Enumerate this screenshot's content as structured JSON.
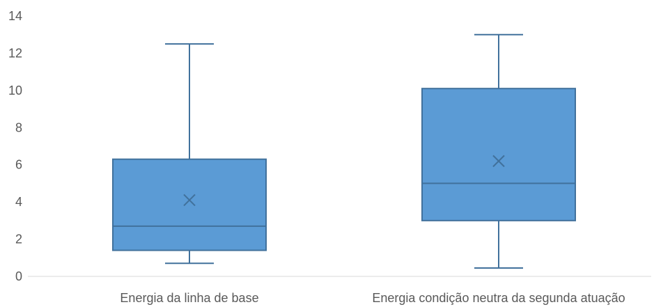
{
  "chart_data": {
    "type": "boxplot",
    "title": "",
    "xlabel": "",
    "ylabel": "",
    "ylim": [
      0,
      14
    ],
    "yticks": [
      0,
      2,
      4,
      6,
      8,
      10,
      12,
      14
    ],
    "grid": false,
    "legend": "none",
    "categories": [
      "Energia da linha de base",
      "Energia condição neutra da segunda atuação"
    ],
    "boxes": [
      {
        "min": 0.7,
        "q1": 1.4,
        "median": 2.7,
        "mean": 4.1,
        "q3": 6.3,
        "max": 12.5
      },
      {
        "min": 0.45,
        "q1": 3.0,
        "median": 5.0,
        "mean": 6.2,
        "q3": 10.1,
        "max": 13.0
      }
    ],
    "colors": {
      "box_fill": "#5b9bd5",
      "box_stroke": "#41719c",
      "axis": "#d9d9d9",
      "label": "#595959"
    }
  }
}
